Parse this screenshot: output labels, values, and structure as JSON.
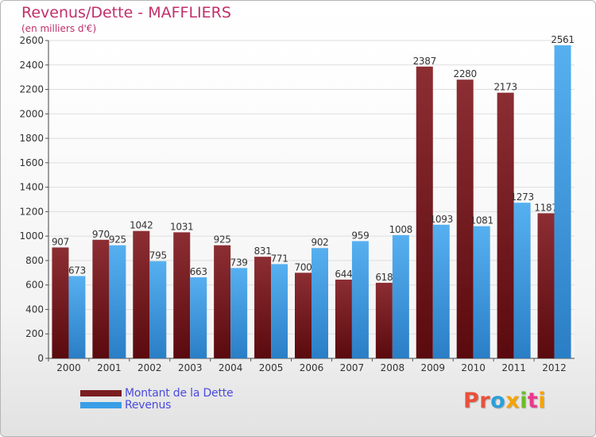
{
  "header": {
    "title": "Revenus/Dette - MAFFLIERS",
    "subtitle": "(en milliers d'€)"
  },
  "brand": {
    "logo_text": "Proxiti",
    "letter_colors": [
      "#e8503a",
      "#e8503a",
      "#2c9fd8",
      "#f5a400",
      "#6dbb2a",
      "#e83a8c",
      "#f5a400"
    ]
  },
  "colors": {
    "dette": "#7a1e22",
    "revenus": "#3a9ee6",
    "title": "#c0306a",
    "legend_text": "#4a4adc"
  },
  "chart_data": {
    "type": "bar",
    "title": "Revenus/Dette - MAFFLIERS",
    "subtitle": "(en milliers d'€)",
    "xlabel": "",
    "ylabel": "",
    "categories": [
      "2000",
      "2001",
      "2002",
      "2003",
      "2004",
      "2005",
      "2006",
      "2007",
      "2008",
      "2009",
      "2010",
      "2011",
      "2012"
    ],
    "series": [
      {
        "name": "Montant de la Dette",
        "color": "#7a1e22",
        "values": [
          907,
          970,
          1042,
          1031,
          925,
          831,
          700,
          644,
          618,
          2387,
          2280,
          2173,
          1187
        ]
      },
      {
        "name": "Revenus",
        "color": "#3a9ee6",
        "values": [
          673,
          925,
          795,
          663,
          739,
          771,
          902,
          959,
          1008,
          1093,
          1081,
          1273,
          2561
        ]
      }
    ],
    "ylim": [
      0,
      2600
    ],
    "yticks": [
      0,
      200,
      400,
      600,
      800,
      1000,
      1200,
      1400,
      1600,
      1800,
      2000,
      2200,
      2400,
      2600
    ],
    "grid": true,
    "legend_position": "bottom-left"
  }
}
